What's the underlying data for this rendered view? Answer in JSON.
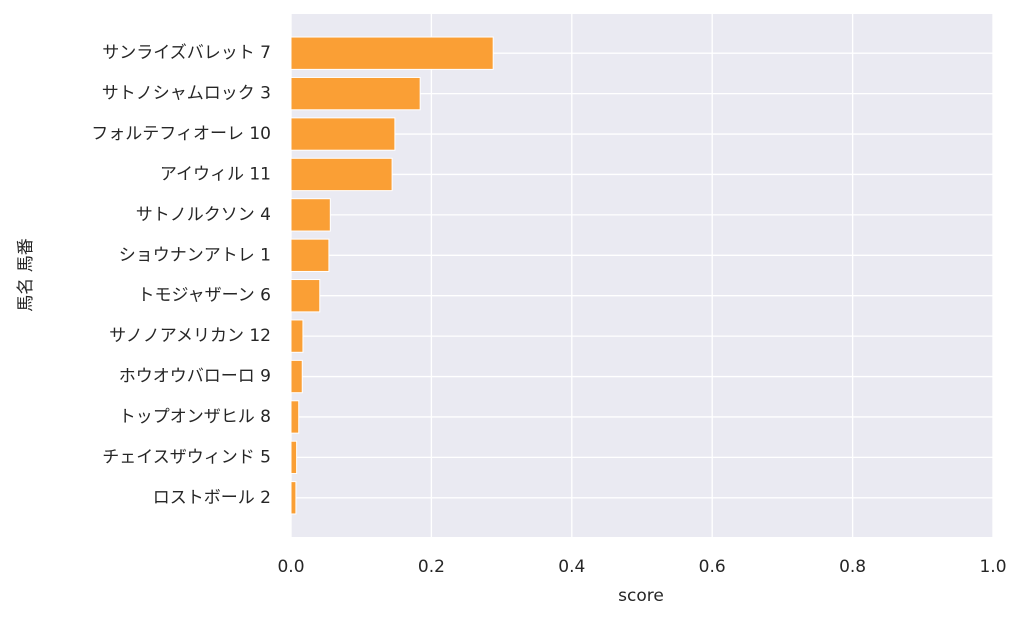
{
  "chart_data": {
    "type": "barh",
    "xlabel": "score",
    "ylabel": "馬名 馬番",
    "categories": [
      "サンライズバレット 7",
      "サトノシャムロック 3",
      "フォルテフィオーレ 10",
      "アイウィル 11",
      "サトノルクソン 4",
      "ショウナンアトレ 1",
      "トモジャザーン 6",
      "サノノアメリカン 12",
      "ホウオウバローロ 9",
      "トップオンザヒル 8",
      "チェイスザウィンド 5",
      "ロストボール 2"
    ],
    "values": [
      0.288,
      0.184,
      0.148,
      0.144,
      0.056,
      0.054,
      0.041,
      0.017,
      0.016,
      0.011,
      0.008,
      0.007
    ],
    "color": "#fa9f35",
    "xlim": [
      0,
      1
    ],
    "xticks": [
      {
        "value": 0,
        "label": "0.0"
      },
      {
        "value": 0.2,
        "label": "0.2"
      },
      {
        "value": 0.4,
        "label": "0.4"
      },
      {
        "value": 0.6,
        "label": "0.6"
      },
      {
        "value": 0.8,
        "label": "0.8"
      },
      {
        "value": 1,
        "label": "1.0"
      }
    ],
    "grid": true
  }
}
